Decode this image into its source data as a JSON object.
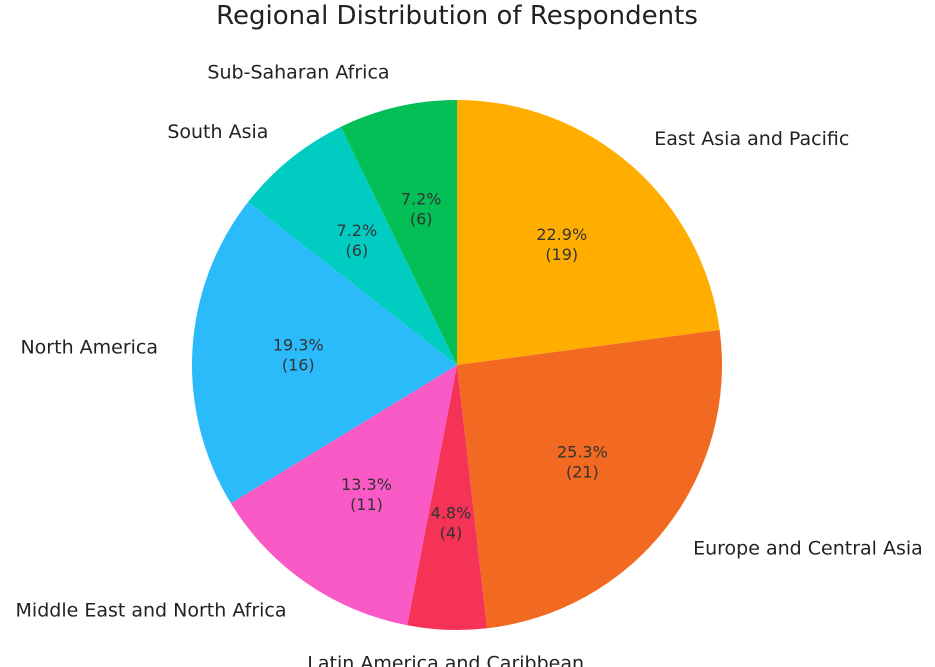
{
  "chart_data": {
    "type": "pie",
    "title": "Regional Distribution of Respondents",
    "start_angle_deg": 90,
    "direction": "clockwise",
    "slices": [
      {
        "label": "East Asia and Pacific",
        "count": 19,
        "percent": "22.9%",
        "count_text": "(19)",
        "color": "#FFAE00"
      },
      {
        "label": "Europe and Central Asia",
        "count": 21,
        "percent": "25.3%",
        "count_text": "(21)",
        "color": "#F26922"
      },
      {
        "label": "Latin America and Caribbean",
        "count": 4,
        "percent": "4.8%",
        "count_text": "(4)",
        "color": "#F53357"
      },
      {
        "label": "Middle East and North Africa",
        "count": 11,
        "percent": "13.3%",
        "count_text": "(11)",
        "color": "#F95AC6"
      },
      {
        "label": "North America",
        "count": 16,
        "percent": "19.3%",
        "count_text": "(16)",
        "color": "#2CBBFA"
      },
      {
        "label": "South Asia",
        "count": 6,
        "percent": "7.2%",
        "count_text": "(6)",
        "color": "#00CCC2"
      },
      {
        "label": "Sub-Saharan Africa",
        "count": 6,
        "percent": "7.2%",
        "count_text": "(6)",
        "color": "#03BF55"
      }
    ]
  }
}
